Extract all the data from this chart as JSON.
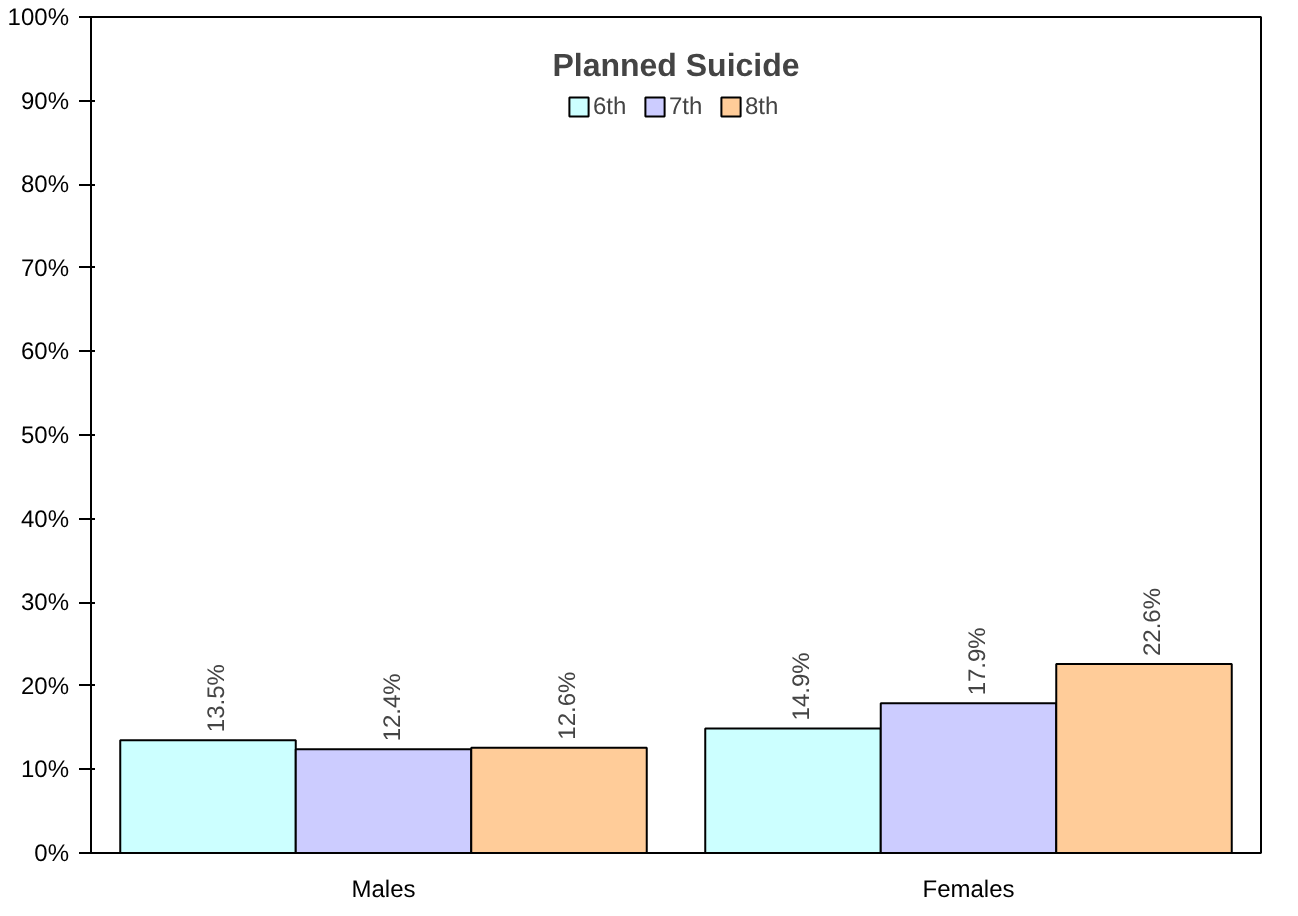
{
  "chart_data": {
    "type": "bar",
    "title": "Planned Suicide",
    "categories": [
      "Males",
      "Females"
    ],
    "series": [
      {
        "name": "6th",
        "color": "#ccffff",
        "values": [
          13.5,
          14.9
        ],
        "value_labels": [
          "13.5%",
          "14.9%"
        ]
      },
      {
        "name": "7th",
        "color": "#ccccff",
        "values": [
          12.4,
          17.9
        ],
        "value_labels": [
          "12.4%",
          "17.9%"
        ]
      },
      {
        "name": "8th",
        "color": "#ffcc99",
        "values": [
          12.6,
          22.6
        ],
        "value_labels": [
          "12.6%",
          "22.6%"
        ]
      }
    ],
    "ylim": [
      0,
      100
    ],
    "yticks": [
      {
        "value": 0,
        "label": "0%"
      },
      {
        "value": 10,
        "label": "10%"
      },
      {
        "value": 20,
        "label": "20%"
      },
      {
        "value": 30,
        "label": "30%"
      },
      {
        "value": 40,
        "label": "40%"
      },
      {
        "value": 50,
        "label": "50%"
      },
      {
        "value": 60,
        "label": "60%"
      },
      {
        "value": 70,
        "label": "70%"
      },
      {
        "value": 80,
        "label": "80%"
      },
      {
        "value": 90,
        "label": "90%"
      },
      {
        "value": 100,
        "label": "100%"
      }
    ],
    "grid": false,
    "legend": "top"
  }
}
